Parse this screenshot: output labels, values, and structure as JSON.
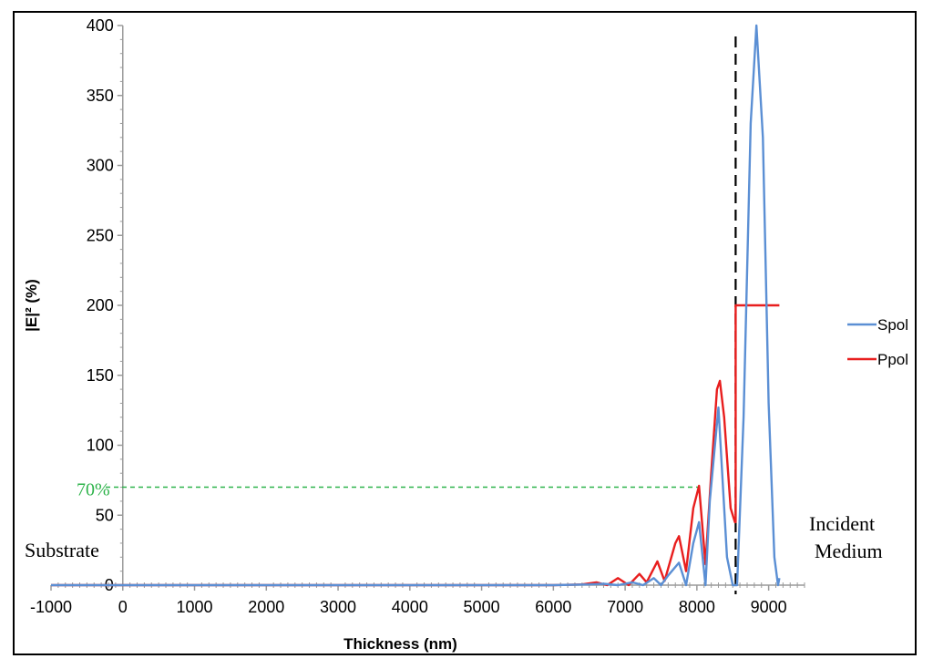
{
  "chart_data": {
    "type": "line",
    "title": "",
    "xlabel": "Thickness (nm)",
    "ylabel": "|E|² (%)",
    "xlim": [
      -1000,
      9500
    ],
    "ylim": [
      0,
      400
    ],
    "x_ticks": [
      "-1000",
      "0",
      "1000",
      "2000",
      "3000",
      "4000",
      "5000",
      "6000",
      "7000",
      "8000",
      "9000"
    ],
    "y_ticks": [
      "0",
      "50",
      "100",
      "150",
      "200",
      "250",
      "300",
      "350",
      "400"
    ],
    "grid": false,
    "legend_position": "right",
    "series": [
      {
        "name": "Spol",
        "color": "#5b8fd4",
        "points": [
          [
            -1000,
            0
          ],
          [
            6000,
            0
          ],
          [
            6500,
            0.5
          ],
          [
            6700,
            1
          ],
          [
            6900,
            0
          ],
          [
            7100,
            2
          ],
          [
            7250,
            0
          ],
          [
            7400,
            5
          ],
          [
            7500,
            0
          ],
          [
            7600,
            7
          ],
          [
            7750,
            16
          ],
          [
            7850,
            0
          ],
          [
            7950,
            30
          ],
          [
            8030,
            45
          ],
          [
            8120,
            0
          ],
          [
            8180,
            60
          ],
          [
            8300,
            127
          ],
          [
            8420,
            20
          ],
          [
            8500,
            0
          ],
          [
            8560,
            0
          ],
          [
            8650,
            120
          ],
          [
            8750,
            330
          ],
          [
            8830,
            400
          ],
          [
            8920,
            320
          ],
          [
            9000,
            130
          ],
          [
            9080,
            20
          ],
          [
            9130,
            0
          ],
          [
            9150,
            5
          ]
        ]
      },
      {
        "name": "Ppol",
        "color": "#e81e1e",
        "points": [
          [
            -1000,
            0
          ],
          [
            6000,
            0
          ],
          [
            6400,
            0.5
          ],
          [
            6600,
            2
          ],
          [
            6750,
            0
          ],
          [
            6900,
            5
          ],
          [
            7050,
            0
          ],
          [
            7200,
            8
          ],
          [
            7300,
            2
          ],
          [
            7450,
            17
          ],
          [
            7550,
            3
          ],
          [
            7700,
            30
          ],
          [
            7750,
            35
          ],
          [
            7850,
            10
          ],
          [
            7950,
            55
          ],
          [
            8030,
            71
          ],
          [
            8120,
            15
          ],
          [
            8200,
            80
          ],
          [
            8280,
            140
          ],
          [
            8320,
            146
          ],
          [
            8380,
            120
          ],
          [
            8470,
            55
          ],
          [
            8530,
            45
          ],
          [
            8540,
            45
          ],
          [
            8540,
            200
          ],
          [
            9150,
            200
          ]
        ]
      }
    ],
    "annotations": {
      "threshold_label": "70%",
      "threshold_value": 70,
      "threshold_x_end": 8030,
      "interface_x": 8540,
      "substrate_label": "Substrate",
      "incident_label_line1": "Incident",
      "incident_label_line2": "Medium"
    }
  }
}
